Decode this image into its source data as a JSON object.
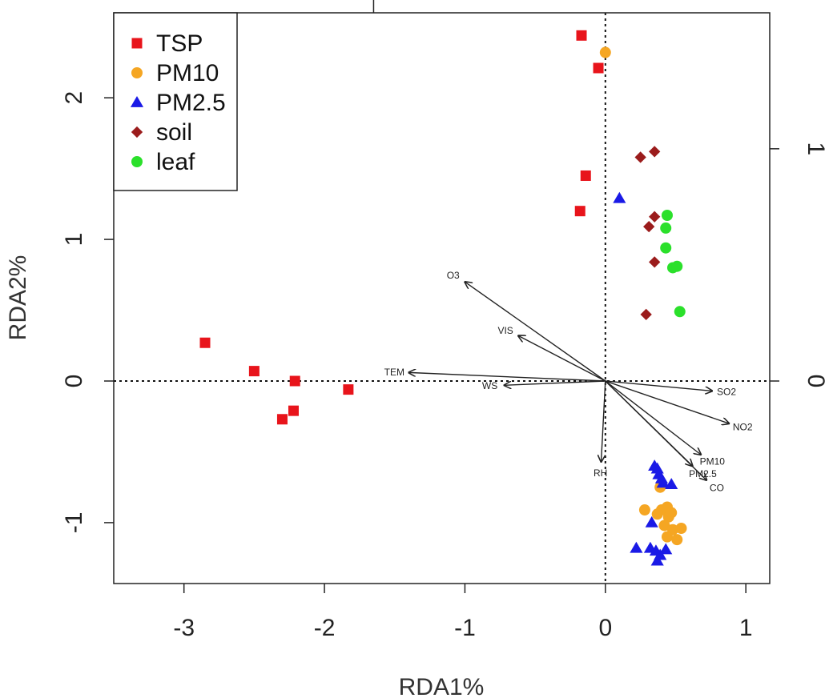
{
  "chart_data": {
    "type": "scatter",
    "subtype": "RDA biplot",
    "title": "",
    "xlabel": "RDA1%",
    "ylabel": "RDA2%",
    "xlim": [
      -3.5,
      1.17
    ],
    "ylim": [
      -1.43,
      2.6
    ],
    "x_ticks": [
      -3,
      -2,
      -1,
      0,
      1
    ],
    "y_ticks": [
      -1,
      0,
      1,
      2
    ],
    "x_tick_labels": [
      "-3",
      "-2",
      "-1",
      "0",
      "1"
    ],
    "y_tick_labels": [
      "-1",
      "0",
      "1",
      "2"
    ],
    "secondary_y_ticks": [
      0,
      1
    ],
    "secondary_y_tick_labels": [
      "0",
      "1"
    ],
    "reference_lines": {
      "x": 0,
      "y": 0,
      "style": "dotted"
    },
    "legend": {
      "position": "top-left"
    },
    "series": [
      {
        "name": "TSP",
        "marker": "square",
        "color": "#e8141b",
        "points": [
          [
            -0.17,
            2.44
          ],
          [
            -0.05,
            2.21
          ],
          [
            -0.14,
            1.45
          ],
          [
            -0.18,
            1.2
          ],
          [
            -2.85,
            0.27
          ],
          [
            -2.5,
            0.07
          ],
          [
            -2.21,
            0.0
          ],
          [
            -1.83,
            -0.06
          ],
          [
            -2.22,
            -0.21
          ],
          [
            -2.3,
            -0.27
          ]
        ]
      },
      {
        "name": "PM10",
        "marker": "circle",
        "color": "#f5a623",
        "points": [
          [
            0.0,
            2.32
          ],
          [
            0.39,
            -0.75
          ],
          [
            0.28,
            -0.91
          ],
          [
            0.4,
            -0.91
          ],
          [
            0.44,
            -0.89
          ],
          [
            0.37,
            -0.94
          ],
          [
            0.45,
            -0.96
          ],
          [
            0.42,
            -1.02
          ],
          [
            0.48,
            -1.05
          ],
          [
            0.54,
            -1.04
          ],
          [
            0.44,
            -1.1
          ],
          [
            0.51,
            -1.12
          ],
          [
            0.47,
            -0.93
          ]
        ]
      },
      {
        "name": "PM2.5",
        "marker": "triangle",
        "color": "#1a1ae6",
        "points": [
          [
            0.1,
            1.29
          ],
          [
            0.35,
            -0.6
          ],
          [
            0.37,
            -0.62
          ],
          [
            0.38,
            -0.66
          ],
          [
            0.4,
            -0.69
          ],
          [
            0.41,
            -0.72
          ],
          [
            0.47,
            -0.73
          ],
          [
            0.33,
            -1.0
          ],
          [
            0.22,
            -1.18
          ],
          [
            0.32,
            -1.18
          ],
          [
            0.36,
            -1.2
          ],
          [
            0.43,
            -1.19
          ],
          [
            0.39,
            -1.23
          ],
          [
            0.37,
            -1.27
          ]
        ]
      },
      {
        "name": "soil",
        "marker": "diamond",
        "color": "#9b1c1c",
        "points": [
          [
            0.35,
            1.62
          ],
          [
            0.25,
            1.58
          ],
          [
            0.35,
            1.16
          ],
          [
            0.31,
            1.09
          ],
          [
            0.35,
            0.84
          ],
          [
            0.29,
            0.47
          ]
        ]
      },
      {
        "name": "leaf",
        "marker": "circle",
        "color": "#2be02b",
        "points": [
          [
            0.44,
            1.17
          ],
          [
            0.43,
            1.08
          ],
          [
            0.43,
            0.94
          ],
          [
            0.48,
            0.8
          ],
          [
            0.51,
            0.81
          ],
          [
            0.53,
            0.49
          ]
        ]
      }
    ],
    "vectors": [
      {
        "name": "O3",
        "x": -1.0,
        "y": 0.7
      },
      {
        "name": "VIS",
        "x": -0.62,
        "y": 0.32
      },
      {
        "name": "TEM",
        "x": -1.4,
        "y": 0.06
      },
      {
        "name": "WS",
        "x": -0.72,
        "y": -0.03
      },
      {
        "name": "SO2",
        "x": 0.76,
        "y": -0.07
      },
      {
        "name": "NO2",
        "x": 0.88,
        "y": -0.3
      },
      {
        "name": "PM10",
        "x": 0.68,
        "y": -0.52
      },
      {
        "name": "PM2.5",
        "x": 0.62,
        "y": -0.6
      },
      {
        "name": "CO",
        "x": 0.72,
        "y": -0.7
      },
      {
        "name": "RH",
        "x": -0.03,
        "y": -0.57
      }
    ]
  }
}
